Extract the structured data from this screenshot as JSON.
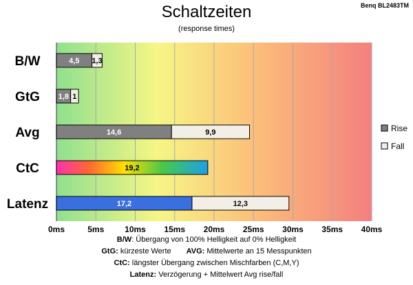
{
  "chart_data": {
    "type": "bar",
    "orientation": "horizontal",
    "stacked": true,
    "title": "Schaltzeiten",
    "subtitle": "(response times)",
    "monitor": "Benq BL2483TM",
    "categories": [
      "B/W",
      "GtG",
      "Avg",
      "CtC",
      "Latenz"
    ],
    "series": [
      {
        "name": "Rise",
        "values": [
          4.5,
          1.8,
          14.6,
          19.2,
          17.2
        ],
        "labels": [
          "4,5",
          "1,8",
          "14,6",
          "19,2",
          "17,2"
        ],
        "color": "#808080"
      },
      {
        "name": "Fall",
        "values": [
          1.3,
          1.0,
          9.9,
          null,
          12.3
        ],
        "labels": [
          "1,3",
          "1",
          "9,9",
          "",
          "12,3"
        ],
        "color": "#f2f0e6"
      }
    ],
    "special_colors": {
      "CtC": "rainbow",
      "Latenz": "#3a6fe0"
    },
    "xlim": [
      0,
      40
    ],
    "xticks": [
      0,
      5,
      10,
      15,
      20,
      25,
      30,
      35,
      40
    ],
    "xtick_labels": [
      "0ms",
      "5ms",
      "10ms",
      "15ms",
      "20ms",
      "25ms",
      "30ms",
      "35ms",
      "40ms"
    ],
    "background": "gradient green-yellow-red",
    "grid": true,
    "legend_position": "right"
  },
  "footer": {
    "line1_key": "B/W",
    "line1_text": ":  Übergang von 100% Helligkeit auf 0% Helligkeit",
    "line2a_key": "GtG:",
    "line2a_text": " kürzeste  Werte",
    "line2b_key": "AVG:",
    "line2b_text": " Mittelwerte  an 15 Messpunkten",
    "line3_key": "CtC:",
    "line3_text": " längster Übergang  zwischen Mischfarben (C,M,Y)",
    "line4_key": "Latenz:",
    "line4_text": " Verzögerung  + Mittelwert  Avg rise/fall"
  }
}
